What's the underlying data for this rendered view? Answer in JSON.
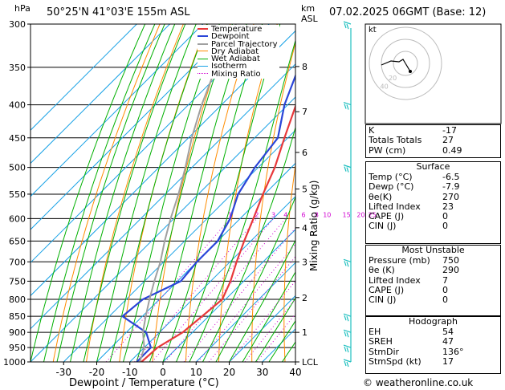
{
  "header": {
    "location": "50°25'N  41°03'E  155m  ASL",
    "datetime": "07.02.2025  06GMT  (Base: 12)",
    "hpa_label": "hPa",
    "km_label": "km",
    "asl_label": "ASL"
  },
  "legend": [
    "Temperature",
    "Dewpoint",
    "Parcel Trajectory",
    "Dry Adiabat",
    "Wet Adiabat",
    "Isotherm",
    "Mixing Ratio"
  ],
  "colors": {
    "temperature": "#e8383a",
    "dewpoint": "#2a45d8",
    "parcel": "#a0a0a0",
    "dry_adiabat": "#ff8c00",
    "wet_adiabat": "#00b000",
    "isotherm": "#19a2e6",
    "mixing_ratio": "#d000d0",
    "wind": "#20c0c0"
  },
  "chart_data": {
    "type": "line",
    "xlabel": "Dewpoint / Temperature (°C)",
    "ylabel": "hPa",
    "right_axis_label": "Mixing Ratio (g/kg)",
    "x_ticks": [
      "-30",
      "-20",
      "-10",
      "0",
      "10",
      "20",
      "30",
      "40"
    ],
    "x_values": [
      -30,
      -20,
      -10,
      0,
      10,
      20,
      30,
      40
    ],
    "xlim": [
      -40,
      40
    ],
    "pressure_levels": [
      300,
      350,
      400,
      450,
      500,
      550,
      600,
      650,
      700,
      750,
      800,
      850,
      900,
      950,
      1000
    ],
    "y_tick_labels": [
      "300",
      "350",
      "400",
      "450",
      "500",
      "550",
      "600",
      "650",
      "700",
      "750",
      "800",
      "850",
      "900",
      "950",
      "1000"
    ],
    "km_ticks": [
      {
        "label": "8",
        "p": 349
      },
      {
        "label": "7",
        "p": 410
      },
      {
        "label": "6",
        "p": 474
      },
      {
        "label": "5",
        "p": 540
      },
      {
        "label": "4",
        "p": 620
      },
      {
        "label": "3",
        "p": 700
      },
      {
        "label": "2",
        "p": 795
      },
      {
        "label": "1",
        "p": 900
      },
      {
        "label": "LCL",
        "p": 1000
      }
    ],
    "mixing_ratio_labels": [
      {
        "label": "1",
        "w": 1
      },
      {
        "label": "2",
        "w": 2
      },
      {
        "label": "3",
        "w": 3
      },
      {
        "label": "4",
        "w": 4
      },
      {
        "label": "6",
        "w": 6
      },
      {
        "label": "8",
        "w": 8
      },
      {
        "label": "10",
        "w": 10
      },
      {
        "label": "15",
        "w": 15
      },
      {
        "label": "20",
        "w": 20
      },
      {
        "label": "25",
        "w": 25
      }
    ],
    "series": [
      {
        "name": "Temperature",
        "points": [
          [
            1000,
            -6.5
          ],
          [
            950,
            -6
          ],
          [
            900,
            -3
          ],
          [
            850,
            -2
          ],
          [
            800,
            -1
          ],
          [
            750,
            -4
          ],
          [
            700,
            -8
          ],
          [
            650,
            -12
          ],
          [
            600,
            -16
          ],
          [
            550,
            -20.5
          ],
          [
            500,
            -25
          ],
          [
            450,
            -31
          ],
          [
            400,
            -37.5
          ],
          [
            350,
            -44
          ],
          [
            300,
            -50
          ]
        ]
      },
      {
        "name": "Dewpoint",
        "points": [
          [
            1000,
            -7.9
          ],
          [
            950,
            -8
          ],
          [
            900,
            -14
          ],
          [
            850,
            -26
          ],
          [
            800,
            -25
          ],
          [
            750,
            -19
          ],
          [
            700,
            -20
          ],
          [
            650,
            -20
          ],
          [
            600,
            -23
          ],
          [
            550,
            -28
          ],
          [
            500,
            -31
          ],
          [
            450,
            -33
          ],
          [
            400,
            -41
          ],
          [
            350,
            -48
          ],
          [
            300,
            -54
          ]
        ]
      },
      {
        "name": "Parcel Trajectory",
        "points": [
          [
            1000,
            -7
          ],
          [
            950,
            -10
          ],
          [
            900,
            -15
          ],
          [
            850,
            -19
          ],
          [
            800,
            -23
          ],
          [
            750,
            -27
          ],
          [
            700,
            -31
          ],
          [
            650,
            -36
          ],
          [
            600,
            -41
          ],
          [
            550,
            -46
          ],
          [
            500,
            -52
          ],
          [
            450,
            -59
          ],
          [
            400,
            -66
          ],
          [
            350,
            -73
          ],
          [
            300,
            -80
          ]
        ]
      }
    ]
  },
  "hodograph": {
    "label": "kt",
    "ring_labels": [
      "20",
      "40"
    ]
  },
  "indices": [
    {
      "label": "K",
      "value": "-17"
    },
    {
      "label": "Totals Totals",
      "value": "27"
    },
    {
      "label": "PW (cm)",
      "value": "0.49"
    }
  ],
  "surface": {
    "title": "Surface",
    "rows": [
      {
        "label": "Temp (°C)",
        "value": "-6.5"
      },
      {
        "label": "Dewp (°C)",
        "value": "-7.9"
      },
      {
        "label": "θe(K)",
        "value": "270"
      },
      {
        "label": "Lifted Index",
        "value": "23"
      },
      {
        "label": "CAPE (J)",
        "value": "0"
      },
      {
        "label": "CIN (J)",
        "value": "0"
      }
    ]
  },
  "most_unstable": {
    "title": "Most Unstable",
    "rows": [
      {
        "label": "Pressure (mb)",
        "value": "750"
      },
      {
        "label": "θe (K)",
        "value": "290"
      },
      {
        "label": "Lifted Index",
        "value": "7"
      },
      {
        "label": "CAPE (J)",
        "value": "0"
      },
      {
        "label": "CIN (J)",
        "value": "0"
      }
    ]
  },
  "hodograph_table": {
    "title": "Hodograph",
    "rows": [
      {
        "label": "EH",
        "value": "54"
      },
      {
        "label": "SREH",
        "value": "47"
      },
      {
        "label": "StmDir",
        "value": "136°"
      },
      {
        "label": "StmSpd (kt)",
        "value": "17"
      }
    ]
  },
  "copyright": "© weatheronline.co.uk",
  "wind_levels": [
    300,
    400,
    500,
    700,
    850,
    900,
    950,
    1000
  ]
}
